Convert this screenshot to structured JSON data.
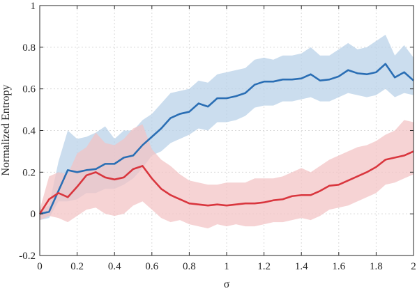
{
  "chart_data": {
    "type": "line",
    "title": "",
    "xlabel": "σ",
    "ylabel": "Normalized Entropy",
    "xlim": [
      0,
      2
    ],
    "ylim": [
      -0.2,
      1
    ],
    "grid": true,
    "x_ticks": [
      0,
      0.2,
      0.4,
      0.6,
      0.8,
      1,
      1.2,
      1.4,
      1.6,
      1.8,
      2
    ],
    "x_tick_labels": [
      "0",
      "0.2",
      "0.4",
      "0.6",
      "0.8",
      "1",
      "1.2",
      "1.4",
      "1.6",
      "1.8",
      "2"
    ],
    "y_ticks": [
      -0.2,
      0,
      0.2,
      0.4,
      0.6,
      0.8,
      1
    ],
    "y_tick_labels": [
      "-0.2",
      "0",
      "0.2",
      "0.4",
      "0.6",
      "0.8",
      "1"
    ],
    "x": [
      0,
      0.05,
      0.1,
      0.15,
      0.2,
      0.25,
      0.3,
      0.35,
      0.4,
      0.45,
      0.5,
      0.55,
      0.6,
      0.65,
      0.7,
      0.75,
      0.8,
      0.85,
      0.9,
      0.95,
      1.0,
      1.05,
      1.1,
      1.15,
      1.2,
      1.25,
      1.3,
      1.35,
      1.4,
      1.45,
      1.5,
      1.55,
      1.6,
      1.65,
      1.7,
      1.75,
      1.8,
      1.85,
      1.9,
      1.95,
      2.0
    ],
    "series": [
      {
        "color": "#2a6eb4",
        "band_color": "#b7d0e8",
        "values": [
          0.0,
          0.01,
          0.11,
          0.21,
          0.2,
          0.21,
          0.215,
          0.24,
          0.24,
          0.27,
          0.28,
          0.33,
          0.37,
          0.41,
          0.46,
          0.48,
          0.49,
          0.53,
          0.515,
          0.555,
          0.555,
          0.565,
          0.58,
          0.62,
          0.635,
          0.635,
          0.645,
          0.645,
          0.65,
          0.67,
          0.64,
          0.645,
          0.66,
          0.69,
          0.675,
          0.67,
          0.68,
          0.72,
          0.655,
          0.68,
          0.64
        ],
        "lower": [
          -0.03,
          -0.02,
          0.06,
          0.06,
          0.07,
          0.1,
          0.1,
          0.12,
          0.12,
          0.14,
          0.17,
          0.22,
          0.28,
          0.3,
          0.34,
          0.36,
          0.38,
          0.41,
          0.4,
          0.44,
          0.44,
          0.45,
          0.47,
          0.51,
          0.52,
          0.52,
          0.54,
          0.54,
          0.55,
          0.56,
          0.54,
          0.54,
          0.56,
          0.58,
          0.57,
          0.56,
          0.57,
          0.6,
          0.56,
          0.58,
          0.57
        ],
        "upper": [
          0.02,
          0.04,
          0.25,
          0.4,
          0.36,
          0.37,
          0.39,
          0.42,
          0.36,
          0.4,
          0.4,
          0.45,
          0.48,
          0.53,
          0.58,
          0.59,
          0.6,
          0.64,
          0.63,
          0.67,
          0.68,
          0.69,
          0.7,
          0.74,
          0.75,
          0.74,
          0.76,
          0.76,
          0.77,
          0.8,
          0.76,
          0.76,
          0.79,
          0.82,
          0.79,
          0.8,
          0.83,
          0.86,
          0.76,
          0.81,
          0.75
        ]
      },
      {
        "color": "#d9363e",
        "band_color": "#f2c2c4",
        "values": [
          0.0,
          0.07,
          0.1,
          0.08,
          0.13,
          0.185,
          0.2,
          0.175,
          0.165,
          0.175,
          0.215,
          0.23,
          0.17,
          0.12,
          0.09,
          0.07,
          0.05,
          0.045,
          0.04,
          0.045,
          0.04,
          0.045,
          0.05,
          0.05,
          0.055,
          0.065,
          0.07,
          0.085,
          0.09,
          0.09,
          0.11,
          0.135,
          0.14,
          0.16,
          0.18,
          0.2,
          0.225,
          0.26,
          0.27,
          0.28,
          0.3
        ],
        "lower": [
          -0.03,
          -0.01,
          -0.02,
          -0.04,
          -0.01,
          0.02,
          0.03,
          0.0,
          -0.01,
          0.0,
          0.04,
          0.06,
          0.02,
          -0.02,
          -0.04,
          -0.03,
          -0.05,
          -0.06,
          -0.07,
          -0.05,
          -0.06,
          -0.05,
          -0.06,
          -0.06,
          -0.05,
          -0.04,
          -0.04,
          -0.03,
          -0.02,
          -0.03,
          -0.01,
          0.02,
          0.03,
          0.04,
          0.06,
          0.08,
          0.1,
          0.14,
          0.15,
          0.17,
          0.19
        ],
        "upper": [
          0.02,
          0.18,
          0.2,
          0.19,
          0.29,
          0.32,
          0.39,
          0.34,
          0.33,
          0.36,
          0.41,
          0.43,
          0.31,
          0.26,
          0.23,
          0.19,
          0.16,
          0.15,
          0.14,
          0.14,
          0.15,
          0.15,
          0.15,
          0.17,
          0.17,
          0.17,
          0.18,
          0.2,
          0.22,
          0.2,
          0.23,
          0.26,
          0.28,
          0.3,
          0.32,
          0.33,
          0.35,
          0.38,
          0.4,
          0.45,
          0.44
        ]
      }
    ]
  }
}
